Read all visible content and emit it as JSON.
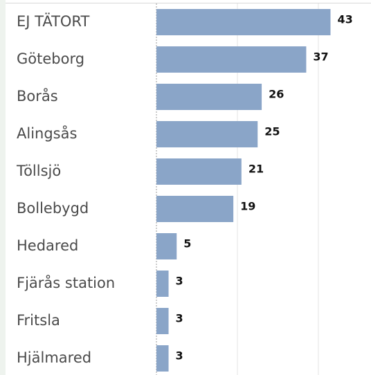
{
  "chart_data": {
    "type": "bar",
    "orientation": "horizontal",
    "categories": [
      "EJ TÄTORT",
      "Göteborg",
      "Borås",
      "Alingsås",
      "Töllsjö",
      "Bollebygd",
      "Hedared",
      "Fjärås station",
      "Fritsla",
      "Hjälmared"
    ],
    "values": [
      43,
      37,
      26,
      25,
      21,
      19,
      5,
      3,
      3,
      3
    ],
    "color": "#8aa5c8",
    "xlim": [
      0,
      53
    ],
    "xticks": [
      0,
      20,
      40
    ],
    "grid": true
  }
}
